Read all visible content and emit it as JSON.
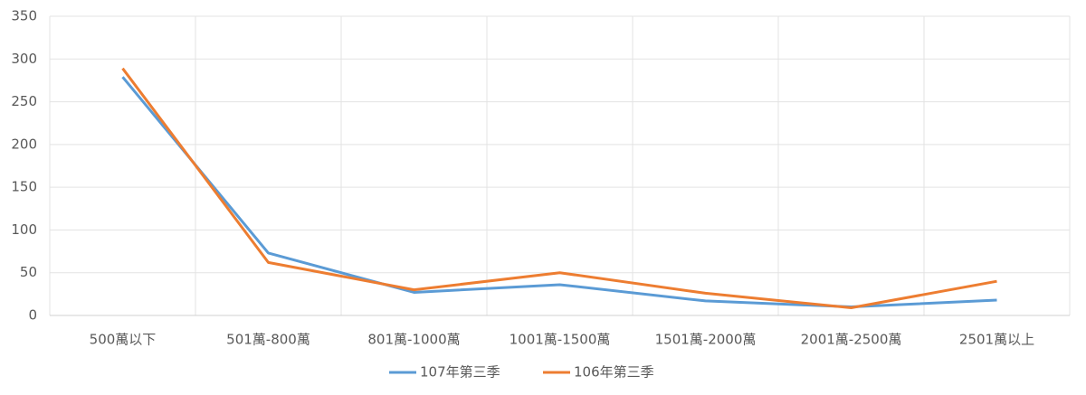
{
  "chart_data": {
    "type": "line",
    "categories": [
      "500萬以下",
      "501萬-800萬",
      "801萬-1000萬",
      "1001萬-1500萬",
      "1501萬-2000萬",
      "2001萬-2500萬",
      "2501萬以上"
    ],
    "series": [
      {
        "name": "107年第三季",
        "color": "#5b9bd5",
        "values": [
          279,
          73,
          27,
          36,
          17,
          10,
          18
        ]
      },
      {
        "name": "106年第三季",
        "color": "#ed7d31",
        "values": [
          289,
          62,
          30,
          50,
          26,
          9,
          40
        ]
      }
    ],
    "ylim": [
      0,
      350
    ],
    "yticks": [
      0,
      50,
      100,
      150,
      200,
      250,
      300,
      350
    ],
    "grid": true,
    "legend": "bottom"
  }
}
